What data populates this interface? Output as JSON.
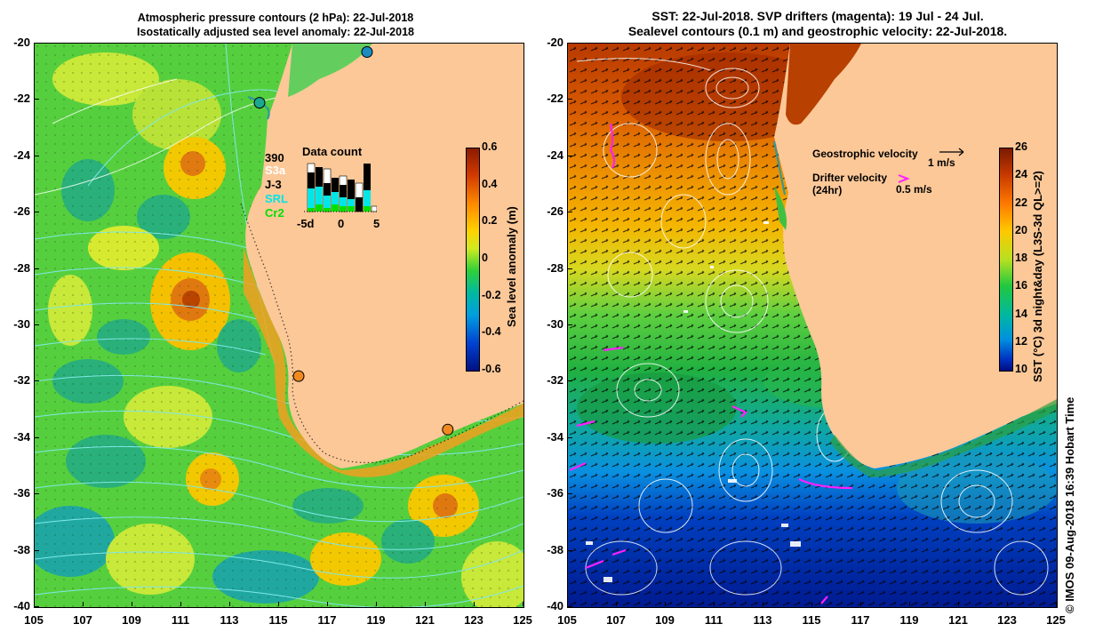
{
  "left_panel": {
    "title_line1": "Atmospheric pressure contours (2 hPa): 22-Jul-2018",
    "title_line2": "Isostatically adjusted sea level anomaly: 22-Jul-2018",
    "y_ticks": [
      "-20",
      "-22",
      "-24",
      "-26",
      "-28",
      "-30",
      "-32",
      "-34",
      "-36",
      "-38",
      "-40"
    ],
    "x_ticks": [
      "105",
      "107",
      "109",
      "111",
      "113",
      "115",
      "117",
      "119",
      "121",
      "123",
      "125"
    ],
    "colorbar": {
      "label": "Sea level anomaly (m)",
      "ticks": [
        "0.6",
        "0.4",
        "0.2",
        "0",
        "-0.2",
        "-0.4",
        "-0.6"
      ]
    },
    "data_count": {
      "title": "Data count",
      "total": "390",
      "satellites": [
        {
          "name": "S3a",
          "color": "#ffffff"
        },
        {
          "name": "J-3",
          "color": "#000000"
        },
        {
          "name": "SRL",
          "color": "#00e5e5"
        },
        {
          "name": "Cr2",
          "color": "#00e000"
        }
      ],
      "axis_labels": [
        "-5d",
        "0",
        "5"
      ]
    },
    "tide_gauge_markers": [
      {
        "lon": 118.6,
        "lat": -20.3,
        "color": "#1c8cc0"
      },
      {
        "lon": 114.2,
        "lat": -22.1,
        "color": "#1aa890"
      },
      {
        "lon": 115.8,
        "lat": -31.8,
        "color": "#f08a20"
      },
      {
        "lon": 121.9,
        "lat": -33.7,
        "color": "#f08a20"
      }
    ]
  },
  "right_panel": {
    "title_line1": "SST: 22-Jul-2018. SVP drifters (magenta): 19 Jul - 24 Jul.",
    "title_line2": "Sealevel contours (0.1 m) and geostrophic velocity: 22-Jul-2018.",
    "y_ticks": [
      "-20",
      "-22",
      "-24",
      "-26",
      "-28",
      "-30",
      "-32",
      "-34",
      "-36",
      "-38",
      "-40"
    ],
    "x_ticks": [
      "105",
      "107",
      "109",
      "111",
      "113",
      "115",
      "117",
      "119",
      "121",
      "123",
      "125"
    ],
    "colorbar": {
      "label": "SST (°C) 3d night&day (L3S-3d QL>=2)",
      "ticks": [
        "26",
        "24",
        "22",
        "20",
        "18",
        "16",
        "14",
        "12",
        "10"
      ]
    },
    "legend": {
      "geo_label": "Geostrophic velocity",
      "geo_scale": "1 m/s",
      "drifter_label": "Drifter velocity",
      "drifter_sub": "(24hr)",
      "drifter_scale": "0.5 m/s"
    }
  },
  "credit": "© IMOS 09-Aug-2018 16:39 Hobart Time",
  "colors": {
    "land": "#fcc898",
    "ocean_green": "#4cd040",
    "drifter": "#ff20ff"
  }
}
